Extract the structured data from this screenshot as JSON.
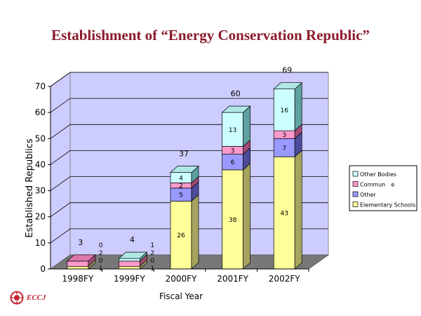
{
  "slide": {
    "title": "Establishment of “Energy Conservation Republic”"
  },
  "logo": {
    "text": "ECCJ"
  },
  "chart_data": {
    "type": "bar",
    "stacked": true,
    "three_d": true,
    "categories": [
      "1998FY",
      "1999FY",
      "2000FY",
      "2001FY",
      "2002FY"
    ],
    "series": [
      {
        "name": "Elementary Schools",
        "color": "#ffff99",
        "side_color": "#a5a560",
        "top_color": "#d8d87a",
        "values": [
          1,
          1,
          26,
          38,
          43
        ],
        "labels": [
          "1",
          "1",
          "26",
          "38",
          "43"
        ]
      },
      {
        "name": "Other",
        "color": "#9999ff",
        "side_color": "#4c4c9a",
        "top_color": "#7777dd",
        "values": [
          0,
          0,
          5,
          6,
          7
        ],
        "labels": [
          "0",
          "0",
          "5",
          "6",
          "7"
        ]
      },
      {
        "name": "Commun　e",
        "color": "#ff99cc",
        "side_color": "#a14c72",
        "top_color": "#dd77aa",
        "values": [
          2,
          2,
          2,
          3,
          3
        ],
        "labels": [
          "2",
          "2",
          "2",
          "3",
          "3"
        ]
      },
      {
        "name": "Other Bodies",
        "color": "#ccffff",
        "side_color": "#5fa0a0",
        "top_color": "#b0e6e6",
        "values": [
          0,
          1,
          4,
          13,
          16
        ],
        "labels": [
          "0",
          "1",
          "4",
          "13",
          "16"
        ]
      }
    ],
    "totals": [
      "3",
      "4",
      "37",
      "60",
      "69"
    ],
    "ylabel": "Established Republics",
    "xlabel": "Fiscal Year",
    "ylim": [
      0,
      70
    ],
    "yticks": [
      "0",
      "10",
      "20",
      "30",
      "40",
      "50",
      "60",
      "70"
    ],
    "grid": true,
    "legend_position": "right",
    "wall_color": "#ccccff",
    "floor_color": "#777777"
  }
}
